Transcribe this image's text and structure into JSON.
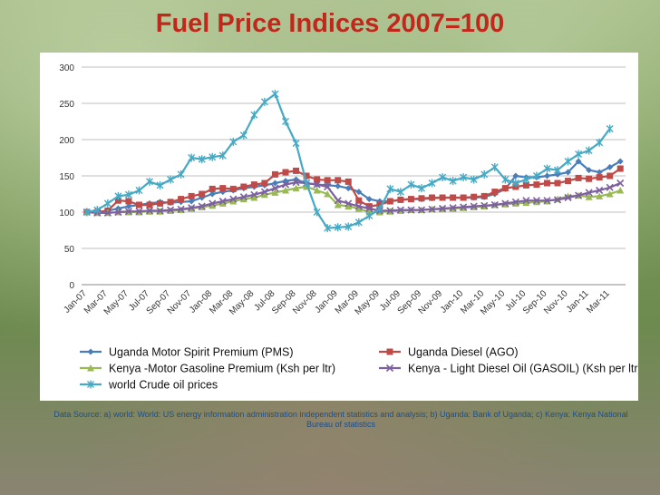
{
  "title": "Fuel Price Indices 2007=100",
  "source": "Data Source: a) world: World: US energy information administration independent statistics and analysis; b) Uganda:  Bank of Uganda; c) Kenya: Kenya National Bureau of statistics",
  "chart_data": {
    "type": "line",
    "title": "Fuel Price Indices 2007=100",
    "ylim": [
      0,
      300
    ],
    "yticks": [
      0,
      50,
      100,
      150,
      200,
      250,
      300
    ],
    "grid": true,
    "legend_position": "bottom",
    "x_tick_labels": [
      "Jan-07",
      "Mar-07",
      "May-07",
      "Jul-07",
      "Sep-07",
      "Nov-07",
      "Jan-08",
      "Mar-08",
      "May-08",
      "Jul-08",
      "Sep-08",
      "Nov-08",
      "Jan-09",
      "Mar-09",
      "May-09",
      "Jul-09",
      "Sep-09",
      "Nov-09",
      "Jan-10",
      "Mar-10",
      "May-10",
      "Jul-10",
      "Sep-10",
      "Nov-10",
      "Jan-11",
      "Mar-11"
    ],
    "x": [
      "Jan-07",
      "Feb-07",
      "Mar-07",
      "Apr-07",
      "May-07",
      "Jun-07",
      "Jul-07",
      "Aug-07",
      "Sep-07",
      "Oct-07",
      "Nov-07",
      "Dec-07",
      "Jan-08",
      "Feb-08",
      "Mar-08",
      "Apr-08",
      "May-08",
      "Jun-08",
      "Jul-08",
      "Aug-08",
      "Sep-08",
      "Oct-08",
      "Nov-08",
      "Dec-08",
      "Jan-09",
      "Feb-09",
      "Mar-09",
      "Apr-09",
      "May-09",
      "Jun-09",
      "Jul-09",
      "Aug-09",
      "Sep-09",
      "Oct-09",
      "Nov-09",
      "Dec-09",
      "Jan-10",
      "Feb-10",
      "Mar-10",
      "Apr-10",
      "May-10",
      "Jun-10",
      "Jul-10",
      "Aug-10",
      "Sep-10",
      "Oct-10",
      "Nov-10",
      "Dec-10",
      "Jan-11",
      "Feb-11",
      "Mar-11",
      "Apr-11"
    ],
    "series": [
      {
        "name": "Uganda Motor Spirit Premium (PMS)",
        "color": "#4a7ebb",
        "marker": "diamond",
        "values": [
          100,
          100,
          102,
          105,
          108,
          110,
          112,
          114,
          113,
          114,
          115,
          120,
          125,
          128,
          130,
          133,
          135,
          137,
          140,
          143,
          145,
          140,
          138,
          137,
          136,
          133,
          128,
          118,
          115,
          115,
          117,
          118,
          118,
          119,
          120,
          120,
          120,
          120,
          121,
          125,
          132,
          150,
          148,
          148,
          150,
          152,
          155,
          170,
          158,
          155,
          162,
          170
        ]
      },
      {
        "name": "Uganda Diesel (AGO)",
        "color": "#be4b48",
        "marker": "square",
        "values": [
          100,
          100,
          102,
          116,
          115,
          110,
          110,
          112,
          114,
          118,
          122,
          125,
          132,
          133,
          132,
          135,
          138,
          140,
          152,
          155,
          157,
          150,
          145,
          144,
          144,
          142,
          116,
          108,
          110,
          115,
          117,
          118,
          119,
          120,
          120,
          120,
          120,
          121,
          122,
          128,
          133,
          135,
          137,
          138,
          140,
          140,
          143,
          147,
          146,
          148,
          150,
          160
        ]
      },
      {
        "name": "Kenya -Motor Gasoline Premium (Ksh per ltr)",
        "color": "#98b954",
        "marker": "triangle",
        "values": [
          100,
          99,
          99,
          100,
          100,
          100,
          101,
          101,
          102,
          103,
          105,
          107,
          109,
          112,
          115,
          118,
          120,
          124,
          127,
          130,
          133,
          135,
          130,
          125,
          110,
          108,
          105,
          100,
          100,
          101,
          102,
          103,
          103,
          104,
          104,
          105,
          106,
          107,
          108,
          110,
          111,
          112,
          113,
          114,
          115,
          118,
          122,
          123,
          121,
          122,
          125,
          130
        ]
      },
      {
        "name": "Kenya - Light Diesel Oil (GASOIL) (Ksh per ltr)",
        "color": "#7d60a0",
        "marker": "x",
        "values": [
          100,
          99,
          99,
          100,
          101,
          101,
          102,
          102,
          103,
          104,
          106,
          108,
          112,
          115,
          118,
          121,
          124,
          128,
          133,
          138,
          141,
          140,
          138,
          135,
          116,
          112,
          108,
          105,
          102,
          102,
          103,
          103,
          103,
          104,
          105,
          106,
          107,
          108,
          109,
          110,
          112,
          114,
          116,
          116,
          116,
          117,
          120,
          123,
          127,
          130,
          134,
          140
        ]
      },
      {
        "name": "world Crude oil prices",
        "color": "#46aac5",
        "marker": "asterisk",
        "values": [
          100,
          103,
          112,
          122,
          124,
          130,
          142,
          137,
          145,
          152,
          175,
          173,
          176,
          178,
          197,
          206,
          234,
          252,
          263,
          225,
          195,
          140,
          100,
          78,
          79,
          80,
          86,
          95,
          104,
          132,
          128,
          138,
          133,
          140,
          148,
          143,
          148,
          145,
          152,
          162,
          145,
          140,
          145,
          150,
          160,
          158,
          170,
          180,
          185,
          196,
          215,
          null
        ]
      }
    ]
  }
}
